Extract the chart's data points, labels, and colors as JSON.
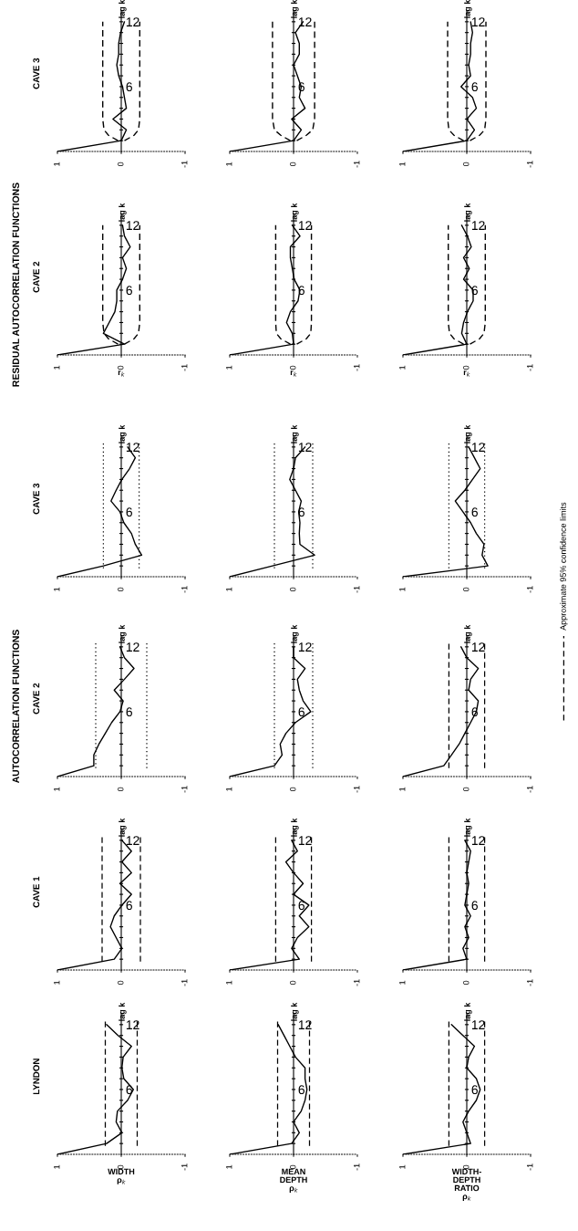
{
  "chart_data": [
    {
      "type": "line",
      "orientation": "horizontal",
      "title": "CAVE 3",
      "ylabel": "lag k",
      "x": [
        0,
        1,
        2,
        3,
        4,
        5,
        6,
        7,
        8,
        9,
        10,
        11,
        12
      ],
      "series": [
        {
          "color": "#000000",
          "values": [
            1,
            0,
            -0.08,
            0.13,
            -0.08,
            -0.05,
            -0.02,
            0.04,
            0.07,
            0.04,
            0.04,
            0.01,
            -0.05
          ]
        },
        {
          "type": "line",
          "line_style": "dashed",
          "color": "#000000",
          "x": [
            1,
            1.5,
            2,
            3,
            12
          ],
          "values": [
            0.05,
            0.2,
            0.27,
            0.29,
            0.29
          ]
        },
        {
          "type": "line",
          "line_style": "dashed",
          "color": "#000000",
          "x": [
            1,
            1.5,
            2,
            3,
            12
          ],
          "values": [
            -0.05,
            -0.2,
            -0.27,
            -0.29,
            -0.29
          ]
        }
      ],
      "xlim": [
        1,
        -1
      ],
      "xticks": [
        1,
        0,
        -1
      ],
      "ylim": [
        0,
        13
      ],
      "yticks": [
        {
          "value": 1,
          "label": null
        },
        {
          "value": 2,
          "label": null
        },
        {
          "value": 3,
          "label": null
        },
        {
          "value": 4,
          "label": null
        },
        {
          "value": 5,
          "label": null
        },
        6,
        {
          "value": 7,
          "label": null
        },
        {
          "value": 8,
          "label": null
        },
        {
          "value": 9,
          "label": null
        },
        {
          "value": 10,
          "label": null
        },
        {
          "value": 11,
          "label": null
        },
        12
      ]
    },
    {
      "type": "line",
      "orientation": "horizontal",
      "ylabel": "lag k",
      "x": [
        0,
        1,
        2,
        3,
        4,
        5,
        6,
        7,
        8,
        9,
        10,
        11,
        12
      ],
      "series": [
        {
          "color": "#000000",
          "values": [
            1,
            0,
            -0.12,
            0.03,
            -0.18,
            -0.09,
            -0.12,
            -0.06,
            0,
            -0.09,
            -0.09,
            -0.03,
            -0.15
          ]
        },
        {
          "type": "line",
          "line_style": "dashed",
          "color": "#000000",
          "x": [
            1,
            1.5,
            2,
            3,
            12
          ],
          "values": [
            0.05,
            0.2,
            0.3,
            0.33,
            0.33
          ]
        },
        {
          "type": "line",
          "line_style": "dashed",
          "color": "#000000",
          "x": [
            1,
            1.5,
            2,
            3,
            12
          ],
          "values": [
            -0.05,
            -0.2,
            -0.3,
            -0.33,
            -0.33
          ]
        }
      ],
      "xlim": [
        1,
        -1
      ],
      "xticks": [
        1,
        0,
        -1
      ],
      "ylim": [
        0,
        13
      ],
      "yticks": [
        {
          "value": 1,
          "label": null
        },
        {
          "value": 2,
          "label": null
        },
        {
          "value": 3,
          "label": null
        },
        {
          "value": 4,
          "label": null
        },
        {
          "value": 5,
          "label": null
        },
        6,
        {
          "value": 7,
          "label": null
        },
        {
          "value": 8,
          "label": null
        },
        {
          "value": 9,
          "label": null
        },
        {
          "value": 10,
          "label": null
        },
        {
          "value": 11,
          "label": null
        },
        12
      ]
    },
    {
      "type": "line",
      "orientation": "horizontal",
      "ylabel": "lag k",
      "x": [
        0,
        1,
        2,
        3,
        4,
        5,
        6,
        7,
        8,
        9,
        10,
        11,
        12
      ],
      "series": [
        {
          "color": "#000000",
          "values": [
            1,
            0,
            -0.12,
            0,
            -0.15,
            -0.09,
            0.09,
            -0.06,
            -0.03,
            -0.06,
            -0.06,
            -0.09,
            -0.06
          ]
        },
        {
          "type": "line",
          "line_style": "dashed",
          "color": "#000000",
          "x": [
            1,
            1.5,
            2,
            3,
            12
          ],
          "values": [
            0.05,
            0.2,
            0.28,
            0.3,
            0.3
          ]
        },
        {
          "type": "line",
          "line_style": "dashed",
          "color": "#000000",
          "x": [
            1,
            1.5,
            2,
            3,
            12
          ],
          "values": [
            -0.05,
            -0.2,
            -0.28,
            -0.3,
            -0.3
          ]
        }
      ],
      "xlim": [
        1,
        -1
      ],
      "xticks": [
        1,
        0,
        -1
      ],
      "ylim": [
        0,
        13
      ],
      "yticks": [
        {
          "value": 1,
          "label": null
        },
        {
          "value": 2,
          "label": null
        },
        {
          "value": 3,
          "label": null
        },
        {
          "value": 4,
          "label": null
        },
        {
          "value": 5,
          "label": null
        },
        6,
        {
          "value": 7,
          "label": null
        },
        {
          "value": 8,
          "label": null
        },
        {
          "value": 9,
          "label": null
        },
        {
          "value": 10,
          "label": null
        },
        {
          "value": 11,
          "label": null
        },
        12
      ]
    },
    {
      "type": "line",
      "orientation": "horizontal",
      "title": "CAVE 2",
      "xlabel": "r$_{k}$",
      "ylabel": "lag k",
      "annotations": [
        "RESIDUAL AUTOCORRELATION FUNCTIONS"
      ],
      "x": [
        0,
        1,
        2,
        3,
        4,
        5,
        6,
        7,
        8,
        9,
        10,
        11,
        12
      ],
      "series": [
        {
          "color": "#000000",
          "values": [
            1,
            -0.05,
            0.28,
            0.19,
            0.1,
            0.07,
            0.07,
            -0.02,
            -0.08,
            -0.02,
            -0.14,
            -0.05,
            -0.02
          ]
        },
        {
          "type": "line",
          "line_style": "dashed",
          "color": "#000000",
          "x": [
            1,
            1.5,
            2,
            3,
            12
          ],
          "values": [
            0.05,
            0.2,
            0.27,
            0.29,
            0.29
          ]
        },
        {
          "type": "line",
          "line_style": "dashed",
          "color": "#000000",
          "x": [
            1,
            1.5,
            2,
            3,
            12
          ],
          "values": [
            -0.05,
            -0.2,
            -0.27,
            -0.29,
            -0.29
          ]
        }
      ],
      "xlim": [
        1,
        -1
      ],
      "xticks": [
        1,
        0,
        -1
      ],
      "ylim": [
        0,
        13
      ],
      "yticks": [
        {
          "value": 1,
          "label": null
        },
        {
          "value": 2,
          "label": null
        },
        {
          "value": 3,
          "label": null
        },
        {
          "value": 4,
          "label": null
        },
        {
          "value": 5,
          "label": null
        },
        6,
        {
          "value": 7,
          "label": null
        },
        {
          "value": 8,
          "label": null
        },
        {
          "value": 9,
          "label": null
        },
        {
          "value": 10,
          "label": null
        },
        {
          "value": 11,
          "label": null
        },
        12
      ]
    },
    {
      "type": "line",
      "orientation": "horizontal",
      "xlabel": "r$_{k}$",
      "ylabel": "lag k",
      "x": [
        0,
        1,
        2,
        3,
        4,
        5,
        6,
        7,
        8,
        9,
        10,
        11,
        12
      ],
      "series": [
        {
          "color": "#000000",
          "values": [
            1,
            0,
            0.02,
            0.11,
            0.05,
            -0.07,
            -0.1,
            -0.01,
            0.02,
            0.05,
            0.05,
            -0.1,
            0.02
          ]
        },
        {
          "type": "line",
          "line_style": "dashed",
          "color": "#000000",
          "x": [
            1,
            1.5,
            2,
            3,
            12
          ],
          "values": [
            0.05,
            0.2,
            0.27,
            0.28,
            0.28
          ]
        },
        {
          "type": "line",
          "line_style": "dashed",
          "color": "#000000",
          "x": [
            1,
            1.5,
            2,
            3,
            12
          ],
          "values": [
            -0.05,
            -0.2,
            -0.27,
            -0.28,
            -0.28
          ]
        }
      ],
      "xlim": [
        1,
        -1
      ],
      "xticks": [
        1,
        0,
        -1
      ],
      "ylim": [
        0,
        13
      ],
      "yticks": [
        {
          "value": 1,
          "label": null
        },
        {
          "value": 2,
          "label": null
        },
        {
          "value": 3,
          "label": null
        },
        {
          "value": 4,
          "label": null
        },
        {
          "value": 5,
          "label": null
        },
        6,
        {
          "value": 7,
          "label": null
        },
        {
          "value": 8,
          "label": null
        },
        {
          "value": 9,
          "label": null
        },
        {
          "value": 10,
          "label": null
        },
        {
          "value": 11,
          "label": null
        },
        12
      ]
    },
    {
      "type": "line",
      "orientation": "horizontal",
      "xlabel": "r$_{k}$",
      "ylabel": "lag k",
      "x": [
        0,
        1,
        2,
        3,
        4,
        5,
        6,
        7,
        8,
        9,
        10,
        11,
        12
      ],
      "series": [
        {
          "color": "#000000",
          "values": [
            1,
            0,
            0.08,
            0.05,
            -0.01,
            -0.1,
            -0.1,
            0.05,
            -0.04,
            0.05,
            -0.07,
            -0.01,
            0.08
          ]
        },
        {
          "type": "line",
          "line_style": "dashed",
          "color": "#000000",
          "x": [
            1,
            1.5,
            2,
            3,
            12
          ],
          "values": [
            0.05,
            0.2,
            0.27,
            0.29,
            0.29
          ]
        },
        {
          "type": "line",
          "line_style": "dashed",
          "color": "#000000",
          "x": [
            1,
            1.5,
            2,
            3,
            12
          ],
          "values": [
            -0.05,
            -0.2,
            -0.27,
            -0.29,
            -0.29
          ]
        }
      ],
      "xlim": [
        1,
        -1
      ],
      "xticks": [
        1,
        0,
        -1
      ],
      "ylim": [
        0,
        13
      ],
      "yticks": [
        {
          "value": 1,
          "label": null
        },
        {
          "value": 2,
          "label": null
        },
        {
          "value": 3,
          "label": null
        },
        {
          "value": 4,
          "label": null
        },
        {
          "value": 5,
          "label": null
        },
        6,
        {
          "value": 7,
          "label": null
        },
        {
          "value": 8,
          "label": null
        },
        {
          "value": 9,
          "label": null
        },
        {
          "value": 10,
          "label": null
        },
        {
          "value": 11,
          "label": null
        },
        12
      ]
    },
    {
      "type": "line",
      "orientation": "horizontal",
      "title": "CAVE 3",
      "ylabel": "lag k",
      "x": [
        0,
        1,
        2,
        3,
        4,
        5,
        6,
        7,
        8,
        9,
        10,
        11,
        12
      ],
      "series": [
        {
          "color": "#000000",
          "values": [
            1,
            0.28,
            -0.32,
            -0.22,
            -0.16,
            -0.04,
            0.02,
            0.16,
            0.08,
            -0.01,
            -0.13,
            -0.22,
            -0.1
          ]
        }
      ],
      "ref_lines": [
        {
          "axis": "x",
          "value": 0.28,
          "line_style": "dotted"
        },
        {
          "axis": "x",
          "value": -0.28,
          "line_style": "dotted"
        }
      ],
      "xlim": [
        1,
        -1
      ],
      "xticks": [
        1,
        0,
        -1
      ],
      "ylim": [
        0,
        13
      ],
      "yticks": [
        {
          "value": 1,
          "label": null
        },
        {
          "value": 2,
          "label": null
        },
        {
          "value": 3,
          "label": null
        },
        {
          "value": 4,
          "label": null
        },
        {
          "value": 5,
          "label": null
        },
        6,
        {
          "value": 7,
          "label": null
        },
        {
          "value": 8,
          "label": null
        },
        {
          "value": 9,
          "label": null
        },
        {
          "value": 10,
          "label": null
        },
        {
          "value": 11,
          "label": null
        },
        12
      ]
    },
    {
      "type": "line",
      "orientation": "horizontal",
      "ylabel": "lag k",
      "x": [
        0,
        1,
        2,
        3,
        4,
        5,
        6,
        7,
        8,
        9,
        10,
        11,
        12
      ],
      "series": [
        {
          "color": "#000000",
          "values": [
            1,
            0.33,
            -0.33,
            -0.1,
            -0.09,
            -0.1,
            -0.08,
            -0.12,
            -0.03,
            0.06,
            0,
            -0.03,
            -0.18
          ]
        }
      ],
      "ref_lines": [
        {
          "axis": "x",
          "value": 0.3,
          "line_style": "dotted"
        },
        {
          "axis": "x",
          "value": -0.3,
          "line_style": "dotted"
        }
      ],
      "xlim": [
        1,
        -1
      ],
      "xticks": [
        1,
        0,
        -1
      ],
      "ylim": [
        0,
        13
      ],
      "yticks": [
        {
          "value": 1,
          "label": null
        },
        {
          "value": 2,
          "label": null
        },
        {
          "value": 3,
          "label": null
        },
        {
          "value": 4,
          "label": null
        },
        {
          "value": 5,
          "label": null
        },
        6,
        {
          "value": 7,
          "label": null
        },
        {
          "value": 8,
          "label": null
        },
        {
          "value": 9,
          "label": null
        },
        {
          "value": 10,
          "label": null
        },
        {
          "value": 11,
          "label": null
        },
        12
      ]
    },
    {
      "type": "line",
      "orientation": "horizontal",
      "ylabel": "lag k",
      "x": [
        0,
        1,
        2,
        3,
        4,
        5,
        6,
        7,
        8,
        9,
        10,
        11,
        12
      ],
      "series": [
        {
          "color": "#000000",
          "values": [
            1,
            -0.33,
            -0.24,
            -0.27,
            -0.15,
            -0.06,
            0.06,
            0.18,
            0.03,
            -0.09,
            -0.21,
            -0.12,
            -0.03
          ]
        }
      ],
      "ref_lines": [
        {
          "axis": "x",
          "value": 0.28,
          "line_style": "dotted"
        },
        {
          "axis": "x",
          "value": -0.28,
          "line_style": "dotted"
        }
      ],
      "xlim": [
        1,
        -1
      ],
      "xticks": [
        1,
        0,
        -1
      ],
      "ylim": [
        0,
        13
      ],
      "yticks": [
        {
          "value": 1,
          "label": null
        },
        {
          "value": 2,
          "label": null
        },
        {
          "value": 3,
          "label": null
        },
        {
          "value": 4,
          "label": null
        },
        {
          "value": 5,
          "label": null
        },
        6,
        {
          "value": 7,
          "label": null
        },
        {
          "value": 8,
          "label": null
        },
        {
          "value": 9,
          "label": null
        },
        {
          "value": 10,
          "label": null
        },
        {
          "value": 11,
          "label": null
        },
        12
      ]
    },
    {
      "type": "line",
      "orientation": "horizontal",
      "title": "CAVE 2",
      "ylabel": "lag k",
      "annotations": [
        "AUTOCORRELATION FUNCTIONS"
      ],
      "x": [
        0,
        1,
        2,
        3,
        4,
        5,
        6,
        7,
        8,
        9,
        10,
        11,
        12
      ],
      "series": [
        {
          "color": "#000000",
          "values": [
            1,
            0.43,
            0.43,
            0.35,
            0.25,
            0.15,
            0.02,
            -0.03,
            0.11,
            -0.05,
            -0.2,
            -0.05,
            0.02
          ]
        }
      ],
      "ref_lines": [
        {
          "axis": "x",
          "value": 0.4,
          "line_style": "dotted"
        },
        {
          "axis": "x",
          "value": -0.4,
          "line_style": "dotted"
        }
      ],
      "xlim": [
        1,
        -1
      ],
      "xticks": [
        1,
        0,
        -1
      ],
      "ylim": [
        0,
        13
      ],
      "yticks": [
        {
          "value": 1,
          "label": null
        },
        {
          "value": 2,
          "label": null
        },
        {
          "value": 3,
          "label": null
        },
        {
          "value": 4,
          "label": null
        },
        {
          "value": 5,
          "label": null
        },
        6,
        {
          "value": 7,
          "label": null
        },
        {
          "value": 8,
          "label": null
        },
        {
          "value": 9,
          "label": null
        },
        {
          "value": 10,
          "label": null
        },
        {
          "value": 11,
          "label": null
        },
        12
      ]
    },
    {
      "type": "line",
      "orientation": "horizontal",
      "ylabel": "lag k",
      "x": [
        0,
        1,
        2,
        3,
        4,
        5,
        6,
        7,
        8,
        9,
        10,
        11,
        12
      ],
      "series": [
        {
          "color": "#000000",
          "values": [
            1,
            0.3,
            0.18,
            0.21,
            0.12,
            -0.03,
            -0.27,
            -0.15,
            -0.09,
            -0.06,
            -0.18,
            0,
            0
          ]
        }
      ],
      "ref_lines": [
        {
          "axis": "x",
          "value": 0.3,
          "line_style": "dotted"
        },
        {
          "axis": "x",
          "value": -0.3,
          "line_style": "dotted"
        }
      ],
      "xlim": [
        1,
        -1
      ],
      "xticks": [
        1,
        0,
        -1
      ],
      "ylim": [
        0,
        13
      ],
      "yticks": [
        {
          "value": 1,
          "label": null
        },
        {
          "value": 2,
          "label": null
        },
        {
          "value": 3,
          "label": null
        },
        {
          "value": 4,
          "label": null
        },
        {
          "value": 5,
          "label": null
        },
        6,
        {
          "value": 7,
          "label": null
        },
        {
          "value": 8,
          "label": null
        },
        {
          "value": 9,
          "label": null
        },
        {
          "value": 10,
          "label": null
        },
        {
          "value": 11,
          "label": null
        },
        12
      ]
    },
    {
      "type": "line",
      "orientation": "horizontal",
      "ylabel": "lag k",
      "legend": "right",
      "x": [
        0,
        1,
        2,
        3,
        4,
        5,
        6,
        7,
        8,
        9,
        10,
        11,
        12
      ],
      "series": [
        {
          "color": "#000000",
          "values": [
            1,
            0.36,
            0.24,
            0.12,
            0.03,
            -0.06,
            -0.15,
            -0.18,
            -0.03,
            -0.06,
            -0.18,
            0,
            0.09
          ]
        }
      ],
      "ref_lines": [
        {
          "axis": "x",
          "value": 0.28,
          "line_style": "dashed",
          "label": "Approximate 95% confidence limits"
        },
        {
          "axis": "x",
          "value": -0.28,
          "line_style": "dashed"
        }
      ],
      "xlim": [
        1,
        -1
      ],
      "xticks": [
        1,
        0,
        -1
      ],
      "ylim": [
        0,
        13
      ],
      "yticks": [
        {
          "value": 1,
          "label": null
        },
        {
          "value": 2,
          "label": null
        },
        {
          "value": 3,
          "label": null
        },
        {
          "value": 4,
          "label": null
        },
        {
          "value": 5,
          "label": null
        },
        6,
        {
          "value": 7,
          "label": null
        },
        {
          "value": 8,
          "label": null
        },
        {
          "value": 9,
          "label": null
        },
        {
          "value": 10,
          "label": null
        },
        {
          "value": 11,
          "label": null
        },
        12
      ]
    },
    {
      "type": "line",
      "orientation": "horizontal",
      "title": "CAVE 1",
      "ylabel": "lag k",
      "x": [
        0,
        1,
        2,
        3,
        4,
        5,
        6,
        7,
        8,
        9,
        10,
        11,
        12
      ],
      "series": [
        {
          "color": "#000000",
          "values": [
            1,
            0.11,
            -0.01,
            0.08,
            0.17,
            0.11,
            -0.01,
            -0.16,
            0.02,
            -0.16,
            -0.01,
            -0.16,
            -0.01
          ]
        }
      ],
      "ref_lines": [
        {
          "axis": "x",
          "value": 0.3,
          "line_style": "dashed"
        },
        {
          "axis": "x",
          "value": -0.3,
          "line_style": "dashed"
        }
      ],
      "xlim": [
        1,
        -1
      ],
      "xticks": [
        1,
        0,
        -1
      ],
      "ylim": [
        0,
        13
      ],
      "yticks": [
        {
          "value": 1,
          "label": null
        },
        {
          "value": 2,
          "label": null
        },
        {
          "value": 3,
          "label": null
        },
        {
          "value": 4,
          "label": null
        },
        {
          "value": 5,
          "label": null
        },
        6,
        {
          "value": 7,
          "label": null
        },
        {
          "value": 8,
          "label": null
        },
        {
          "value": 9,
          "label": null
        },
        {
          "value": 10,
          "label": null
        },
        {
          "value": 11,
          "label": null
        },
        12
      ]
    },
    {
      "type": "line",
      "orientation": "horizontal",
      "ylabel": "lag k",
      "x": [
        0,
        1,
        2,
        3,
        4,
        5,
        6,
        7,
        8,
        9,
        10,
        11,
        12
      ],
      "series": [
        {
          "color": "#000000",
          "values": [
            1,
            -0.09,
            0.03,
            -0.06,
            -0.24,
            -0.09,
            -0.24,
            0,
            -0.15,
            0,
            0.12,
            -0.06,
            0.03
          ]
        }
      ],
      "ref_lines": [
        {
          "axis": "x",
          "value": 0.28,
          "line_style": "dashed"
        },
        {
          "axis": "x",
          "value": -0.28,
          "line_style": "dashed"
        }
      ],
      "xlim": [
        1,
        -1
      ],
      "xticks": [
        1,
        0,
        -1
      ],
      "ylim": [
        0,
        13
      ],
      "yticks": [
        {
          "value": 1,
          "label": null
        },
        {
          "value": 2,
          "label": null
        },
        {
          "value": 3,
          "label": null
        },
        {
          "value": 4,
          "label": null
        },
        {
          "value": 5,
          "label": null
        },
        6,
        {
          "value": 7,
          "label": null
        },
        {
          "value": 8,
          "label": null
        },
        {
          "value": 9,
          "label": null
        },
        {
          "value": 10,
          "label": null
        },
        {
          "value": 11,
          "label": null
        },
        12
      ]
    },
    {
      "type": "line",
      "orientation": "horizontal",
      "ylabel": "lag k",
      "x": [
        0,
        1,
        2,
        3,
        4,
        5,
        6,
        7,
        8,
        9,
        10,
        11,
        12
      ],
      "series": [
        {
          "color": "#000000",
          "values": [
            1,
            0,
            0.06,
            -0.03,
            0.03,
            -0.06,
            0.03,
            0,
            -0.03,
            0,
            -0.03,
            -0.06,
            0.03
          ]
        }
      ],
      "ref_lines": [
        {
          "axis": "x",
          "value": 0.28,
          "line_style": "dashed"
        },
        {
          "axis": "x",
          "value": -0.28,
          "line_style": "dashed"
        }
      ],
      "xlim": [
        1,
        -1
      ],
      "xticks": [
        1,
        0,
        -1
      ],
      "ylim": [
        0,
        13
      ],
      "yticks": [
        {
          "value": 1,
          "label": null
        },
        {
          "value": 2,
          "label": null
        },
        {
          "value": 3,
          "label": null
        },
        {
          "value": 4,
          "label": null
        },
        {
          "value": 5,
          "label": null
        },
        6,
        {
          "value": 7,
          "label": null
        },
        {
          "value": 8,
          "label": null
        },
        {
          "value": 9,
          "label": null
        },
        {
          "value": 10,
          "label": null
        },
        {
          "value": 11,
          "label": null
        },
        12
      ]
    },
    {
      "type": "line",
      "orientation": "horizontal",
      "title": "LYNDON",
      "xlabel": "WIDTH ρ$_{k}$",
      "ylabel": "lag k",
      "x": [
        0,
        1,
        2,
        3,
        4,
        5,
        6,
        7,
        8,
        9,
        10,
        11,
        12
      ],
      "series": [
        {
          "color": "#000000",
          "values": [
            1,
            0.23,
            -0.01,
            0.08,
            0.06,
            -0.1,
            -0.19,
            -0.04,
            -0.01,
            -0.03,
            -0.16,
            0.05,
            0.23
          ]
        }
      ],
      "ref_lines": [
        {
          "axis": "x",
          "value": 0.25,
          "line_style": "dashed"
        },
        {
          "axis": "x",
          "value": -0.25,
          "line_style": "dashed"
        }
      ],
      "xlim": [
        1,
        -1
      ],
      "xticks": [
        1,
        0,
        -1
      ],
      "ylim": [
        0,
        13
      ],
      "yticks": [
        {
          "value": 1,
          "label": null
        },
        {
          "value": 2,
          "label": null
        },
        {
          "value": 3,
          "label": null
        },
        {
          "value": 4,
          "label": null
        },
        {
          "value": 5,
          "label": null
        },
        6,
        {
          "value": 7,
          "label": null
        },
        {
          "value": 8,
          "label": null
        },
        {
          "value": 9,
          "label": null
        },
        {
          "value": 10,
          "label": null
        },
        {
          "value": 11,
          "label": null
        },
        12
      ]
    },
    {
      "type": "line",
      "orientation": "horizontal",
      "xlabel": "MEAN DEPTH ρ$_{k}$",
      "ylabel": "lag k",
      "x": [
        0,
        1,
        2,
        3,
        4,
        5,
        6,
        7,
        8,
        9,
        10,
        11,
        12
      ],
      "series": [
        {
          "color": "#000000",
          "values": [
            1,
            0.03,
            -0.09,
            0,
            -0.12,
            -0.18,
            -0.21,
            -0.18,
            -0.18,
            -0.03,
            0.06,
            0.15,
            0.24
          ]
        }
      ],
      "ref_lines": [
        {
          "axis": "x",
          "value": 0.25,
          "line_style": "dashed"
        },
        {
          "axis": "x",
          "value": -0.25,
          "line_style": "dashed"
        }
      ],
      "xlim": [
        1,
        -1
      ],
      "xticks": [
        1,
        0,
        -1
      ],
      "ylim": [
        0,
        13
      ],
      "yticks": [
        {
          "value": 1,
          "label": null
        },
        {
          "value": 2,
          "label": null
        },
        {
          "value": 3,
          "label": null
        },
        {
          "value": 4,
          "label": null
        },
        {
          "value": 5,
          "label": null
        },
        6,
        {
          "value": 7,
          "label": null
        },
        {
          "value": 8,
          "label": null
        },
        {
          "value": 9,
          "label": null
        },
        {
          "value": 10,
          "label": null
        },
        {
          "value": 11,
          "label": null
        },
        12
      ]
    },
    {
      "type": "line",
      "orientation": "horizontal",
      "xlabel": "WIDTH-DEPTH RATIO ρ$_{k}$",
      "ylabel": "lag k",
      "x": [
        0,
        1,
        2,
        3,
        4,
        5,
        6,
        7,
        8,
        9,
        10,
        11,
        12
      ],
      "series": [
        {
          "color": "#000000",
          "values": [
            1,
            -0.06,
            0,
            0.06,
            -0.03,
            -0.15,
            -0.21,
            -0.15,
            0,
            -0.03,
            -0.12,
            0.06,
            0.24
          ]
        }
      ],
      "ref_lines": [
        {
          "axis": "x",
          "value": 0.28,
          "line_style": "dashed"
        },
        {
          "axis": "x",
          "value": -0.28,
          "line_style": "dashed"
        }
      ],
      "xlim": [
        1,
        -1
      ],
      "xticks": [
        1,
        0,
        -1
      ],
      "ylim": [
        0,
        13
      ],
      "yticks": [
        {
          "value": 1,
          "label": null
        },
        {
          "value": 2,
          "label": null
        },
        {
          "value": 3,
          "label": null
        },
        {
          "value": 4,
          "label": null
        },
        {
          "value": 5,
          "label": null
        },
        6,
        {
          "value": 7,
          "label": null
        },
        {
          "value": 8,
          "label": null
        },
        {
          "value": 9,
          "label": null
        },
        {
          "value": 10,
          "label": null
        },
        {
          "value": 11,
          "label": null
        },
        12
      ]
    }
  ]
}
